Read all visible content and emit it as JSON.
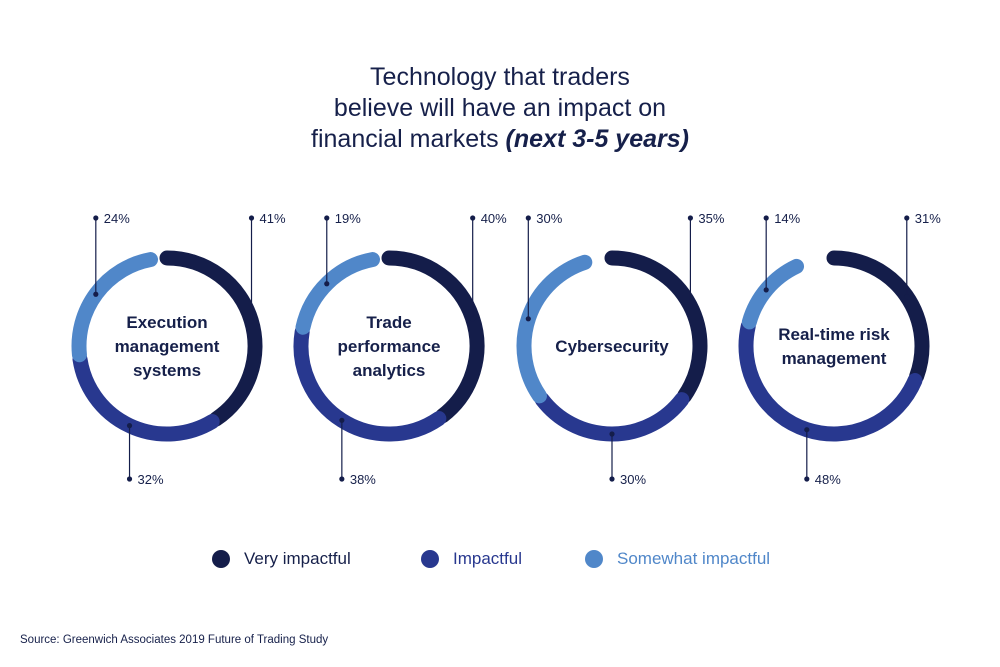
{
  "title": {
    "line1": "Technology that traders",
    "line2": "believe will have an impact on",
    "line3_main": "financial markets ",
    "line3_emph": "(next 3-5 years)"
  },
  "chart_data": {
    "type": "pie",
    "variant": "donut",
    "series_names": [
      "Very impactful",
      "Impactful",
      "Somewhat impactful"
    ],
    "colors": {
      "very": "#141d4a",
      "impactful": "#28388f",
      "somewhat": "#5087c9"
    },
    "charts": [
      {
        "label_lines": [
          "Execution",
          "management",
          "systems"
        ],
        "values": {
          "very": 41,
          "impactful": 32,
          "somewhat": 24
        },
        "labels": {
          "very": "41%",
          "impactful": "32%",
          "somewhat": "24%"
        }
      },
      {
        "label_lines": [
          "Trade",
          "performance",
          "analytics"
        ],
        "values": {
          "very": 40,
          "impactful": 38,
          "somewhat": 19
        },
        "labels": {
          "very": "40%",
          "impactful": "38%",
          "somewhat": "19%"
        }
      },
      {
        "label_lines": [
          "Cybersecurity"
        ],
        "values": {
          "very": 35,
          "impactful": 30,
          "somewhat": 30
        },
        "labels": {
          "very": "35%",
          "impactful": "30%",
          "somewhat": "30%"
        }
      },
      {
        "label_lines": [
          "Real-time risk",
          "management"
        ],
        "values": {
          "very": 31,
          "impactful": 48,
          "somewhat": 14
        },
        "labels": {
          "very": "31%",
          "impactful": "48%",
          "somewhat": "14%"
        }
      }
    ]
  },
  "legend": {
    "very": "Very impactful",
    "impactful": "Impactful",
    "somewhat": "Somewhat impactful"
  },
  "source": "Source: Greenwich Associates 2019 Future of Trading Study"
}
